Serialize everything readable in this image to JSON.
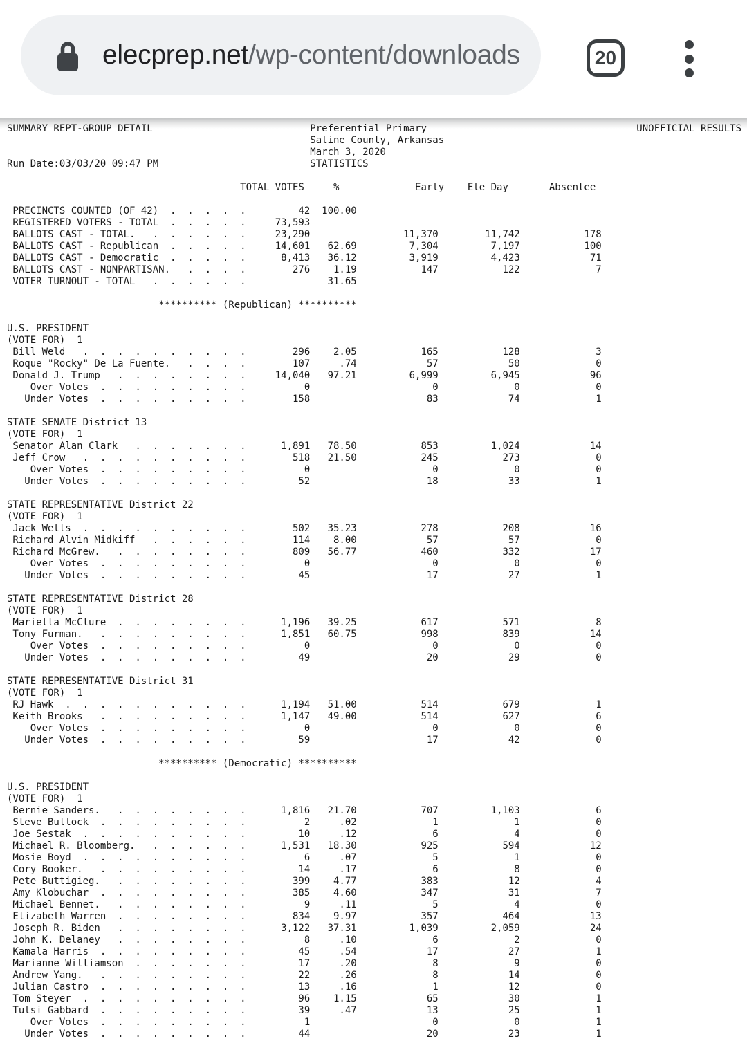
{
  "browser": {
    "url_host": "elecprep.net",
    "url_path": "/wp-content/downloads",
    "tab_count": "20",
    "icons": [
      "lock-icon",
      "tab-counter-icon",
      "kebab-menu-icon"
    ]
  },
  "report": {
    "header": {
      "left": "SUMMARY REPT-GROUP DETAIL",
      "center_lines": [
        "Preferential Primary",
        "Saline County, Arkansas",
        "March 3, 2020"
      ],
      "right": "UNOFFICIAL RESULTS",
      "run_date": "Run Date:03/03/20 09:47 PM",
      "section": "STATISTICS"
    },
    "columns": {
      "total": "TOTAL VOTES",
      "pct": "%",
      "early": "Early",
      "ele_day": "Ele Day",
      "absentee": "Absentee"
    },
    "statistics": [
      {
        "label": "PRECINCTS COUNTED (OF 42)",
        "indent": 1,
        "values": [
          "42",
          "100.00",
          "",
          "",
          ""
        ]
      },
      {
        "label": "REGISTERED VOTERS - TOTAL",
        "indent": 1,
        "values": [
          "73,593",
          "",
          "",
          "",
          ""
        ]
      },
      {
        "label": "BALLOTS CAST - TOTAL.",
        "indent": 1,
        "values": [
          "23,290",
          "",
          "11,370",
          "11,742",
          "178"
        ]
      },
      {
        "label": "BALLOTS CAST - Republican",
        "indent": 1,
        "values": [
          "14,601",
          "62.69",
          "7,304",
          "7,197",
          "100"
        ]
      },
      {
        "label": "BALLOTS CAST - Democratic",
        "indent": 1,
        "values": [
          "8,413",
          "36.12",
          "3,919",
          "4,423",
          "71"
        ]
      },
      {
        "label": "BALLOTS CAST - NONPARTISAN.",
        "indent": 1,
        "values": [
          "276",
          "1.19",
          "147",
          "122",
          "7"
        ]
      },
      {
        "label": "VOTER TURNOUT - TOTAL",
        "indent": 1,
        "values": [
          "",
          "31.65",
          "",
          "",
          ""
        ]
      }
    ],
    "party_sections": [
      {
        "banner": "********** (Republican) **********",
        "contests": [
          {
            "title": "U.S. PRESIDENT",
            "vote_for": "(VOTE FOR)  1",
            "rows": [
              {
                "label": "Bill Weld",
                "indent": 1,
                "values": [
                  "296",
                  "2.05",
                  "165",
                  "128",
                  "3"
                ]
              },
              {
                "label": "Roque \"Rocky\" De La Fuente.",
                "indent": 1,
                "values": [
                  "107",
                  ".74",
                  "57",
                  "50",
                  "0"
                ]
              },
              {
                "label": "Donald J. Trump",
                "indent": 1,
                "values": [
                  "14,040",
                  "97.21",
                  "6,999",
                  "6,945",
                  "96"
                ]
              },
              {
                "label": "Over Votes",
                "indent": 4,
                "values": [
                  "0",
                  "",
                  "0",
                  "0",
                  "0"
                ]
              },
              {
                "label": "Under Votes",
                "indent": 3,
                "values": [
                  "158",
                  "",
                  "83",
                  "74",
                  "1"
                ]
              }
            ]
          },
          {
            "title": "STATE SENATE District 13",
            "vote_for": "(VOTE FOR)  1",
            "rows": [
              {
                "label": "Senator Alan Clark",
                "indent": 1,
                "values": [
                  "1,891",
                  "78.50",
                  "853",
                  "1,024",
                  "14"
                ]
              },
              {
                "label": "Jeff Crow",
                "indent": 1,
                "values": [
                  "518",
                  "21.50",
                  "245",
                  "273",
                  "0"
                ]
              },
              {
                "label": "Over Votes",
                "indent": 4,
                "values": [
                  "0",
                  "",
                  "0",
                  "0",
                  "0"
                ]
              },
              {
                "label": "Under Votes",
                "indent": 3,
                "values": [
                  "52",
                  "",
                  "18",
                  "33",
                  "1"
                ]
              }
            ]
          },
          {
            "title": "STATE REPRESENTATIVE District 22",
            "vote_for": "(VOTE FOR)  1",
            "rows": [
              {
                "label": "Jack Wells",
                "indent": 1,
                "values": [
                  "502",
                  "35.23",
                  "278",
                  "208",
                  "16"
                ]
              },
              {
                "label": "Richard Alvin Midkiff",
                "indent": 1,
                "values": [
                  "114",
                  "8.00",
                  "57",
                  "57",
                  "0"
                ]
              },
              {
                "label": "Richard McGrew.",
                "indent": 1,
                "values": [
                  "809",
                  "56.77",
                  "460",
                  "332",
                  "17"
                ]
              },
              {
                "label": "Over Votes",
                "indent": 4,
                "values": [
                  "0",
                  "",
                  "0",
                  "0",
                  "0"
                ]
              },
              {
                "label": "Under Votes",
                "indent": 3,
                "values": [
                  "45",
                  "",
                  "17",
                  "27",
                  "1"
                ]
              }
            ]
          },
          {
            "title": "STATE REPRESENTATIVE District 28",
            "vote_for": "(VOTE FOR)  1",
            "rows": [
              {
                "label": "Marietta McClure",
                "indent": 1,
                "values": [
                  "1,196",
                  "39.25",
                  "617",
                  "571",
                  "8"
                ]
              },
              {
                "label": "Tony Furman.",
                "indent": 1,
                "values": [
                  "1,851",
                  "60.75",
                  "998",
                  "839",
                  "14"
                ]
              },
              {
                "label": "Over Votes",
                "indent": 4,
                "values": [
                  "0",
                  "",
                  "0",
                  "0",
                  "0"
                ]
              },
              {
                "label": "Under Votes",
                "indent": 3,
                "values": [
                  "49",
                  "",
                  "20",
                  "29",
                  "0"
                ]
              }
            ]
          },
          {
            "title": "STATE REPRESENTATIVE District 31",
            "vote_for": "(VOTE FOR)  1",
            "rows": [
              {
                "label": "RJ Hawk",
                "indent": 1,
                "values": [
                  "1,194",
                  "51.00",
                  "514",
                  "679",
                  "1"
                ]
              },
              {
                "label": "Keith Brooks",
                "indent": 1,
                "values": [
                  "1,147",
                  "49.00",
                  "514",
                  "627",
                  "6"
                ]
              },
              {
                "label": "Over Votes",
                "indent": 4,
                "values": [
                  "0",
                  "",
                  "0",
                  "0",
                  "0"
                ]
              },
              {
                "label": "Under Votes",
                "indent": 3,
                "values": [
                  "59",
                  "",
                  "17",
                  "42",
                  "0"
                ]
              }
            ]
          }
        ]
      },
      {
        "banner": "********** (Democratic) **********",
        "contests": [
          {
            "title": "U.S. PRESIDENT",
            "vote_for": "(VOTE FOR)  1",
            "rows": [
              {
                "label": "Bernie Sanders.",
                "indent": 1,
                "values": [
                  "1,816",
                  "21.70",
                  "707",
                  "1,103",
                  "6"
                ]
              },
              {
                "label": "Steve Bullock",
                "indent": 1,
                "values": [
                  "2",
                  ".02",
                  "1",
                  "1",
                  "0"
                ]
              },
              {
                "label": "Joe Sestak",
                "indent": 1,
                "values": [
                  "10",
                  ".12",
                  "6",
                  "4",
                  "0"
                ]
              },
              {
                "label": "Michael R. Bloomberg.",
                "indent": 1,
                "values": [
                  "1,531",
                  "18.30",
                  "925",
                  "594",
                  "12"
                ]
              },
              {
                "label": "Mosie Boyd",
                "indent": 1,
                "values": [
                  "6",
                  ".07",
                  "5",
                  "1",
                  "0"
                ]
              },
              {
                "label": "Cory Booker.",
                "indent": 1,
                "values": [
                  "14",
                  ".17",
                  "6",
                  "8",
                  "0"
                ]
              },
              {
                "label": "Pete Buttigieg.",
                "indent": 1,
                "values": [
                  "399",
                  "4.77",
                  "383",
                  "12",
                  "4"
                ]
              },
              {
                "label": "Amy Klobuchar",
                "indent": 1,
                "values": [
                  "385",
                  "4.60",
                  "347",
                  "31",
                  "7"
                ]
              },
              {
                "label": "Michael Bennet.",
                "indent": 1,
                "values": [
                  "9",
                  ".11",
                  "5",
                  "4",
                  "0"
                ]
              },
              {
                "label": "Elizabeth Warren",
                "indent": 1,
                "values": [
                  "834",
                  "9.97",
                  "357",
                  "464",
                  "13"
                ]
              },
              {
                "label": "Joseph R. Biden",
                "indent": 1,
                "values": [
                  "3,122",
                  "37.31",
                  "1,039",
                  "2,059",
                  "24"
                ]
              },
              {
                "label": "John K. Delaney",
                "indent": 1,
                "values": [
                  "8",
                  ".10",
                  "6",
                  "2",
                  "0"
                ]
              },
              {
                "label": "Kamala Harris",
                "indent": 1,
                "values": [
                  "45",
                  ".54",
                  "17",
                  "27",
                  "1"
                ]
              },
              {
                "label": "Marianne Williamson",
                "indent": 1,
                "values": [
                  "17",
                  ".20",
                  "8",
                  "9",
                  "0"
                ]
              },
              {
                "label": "Andrew Yang.",
                "indent": 1,
                "values": [
                  "22",
                  ".26",
                  "8",
                  "14",
                  "0"
                ]
              },
              {
                "label": "Julian Castro",
                "indent": 1,
                "values": [
                  "13",
                  ".16",
                  "1",
                  "12",
                  "0"
                ]
              },
              {
                "label": "Tom Steyer",
                "indent": 1,
                "values": [
                  "96",
                  "1.15",
                  "65",
                  "30",
                  "1"
                ]
              },
              {
                "label": "Tulsi Gabbard",
                "indent": 1,
                "values": [
                  "39",
                  ".47",
                  "13",
                  "25",
                  "1"
                ]
              },
              {
                "label": "Over Votes",
                "indent": 4,
                "values": [
                  "1",
                  "",
                  "0",
                  "0",
                  "1"
                ]
              },
              {
                "label": "Under Votes",
                "indent": 3,
                "values": [
                  "44",
                  "",
                  "20",
                  "23",
                  "1"
                ]
              }
            ]
          }
        ]
      }
    ]
  }
}
